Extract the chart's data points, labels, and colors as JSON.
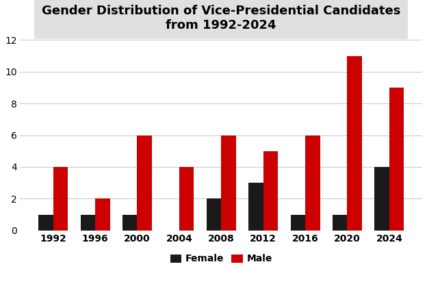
{
  "title": "Gender Distribution of Vice-Presidential Candidates\nfrom 1992-2024",
  "years": [
    1992,
    1996,
    2000,
    2004,
    2008,
    2012,
    2016,
    2020,
    2024
  ],
  "female": [
    1,
    1,
    1,
    0,
    2,
    3,
    1,
    1,
    4
  ],
  "male": [
    4,
    2,
    6,
    4,
    6,
    5,
    6,
    11,
    9
  ],
  "female_color": "#1a1a1a",
  "male_color": "#cc0000",
  "ylim": [
    0,
    12
  ],
  "yticks": [
    0,
    2,
    4,
    6,
    8,
    10,
    12
  ],
  "legend_labels": [
    "Female",
    "Male"
  ],
  "title_fontsize": 13,
  "tick_fontsize": 10,
  "legend_fontsize": 10,
  "bar_width": 0.35,
  "background_color": "#ffffff",
  "plot_bg_color": "#ffffff",
  "title_box_color": "#e0e0e0",
  "grid_color": "#cccccc"
}
